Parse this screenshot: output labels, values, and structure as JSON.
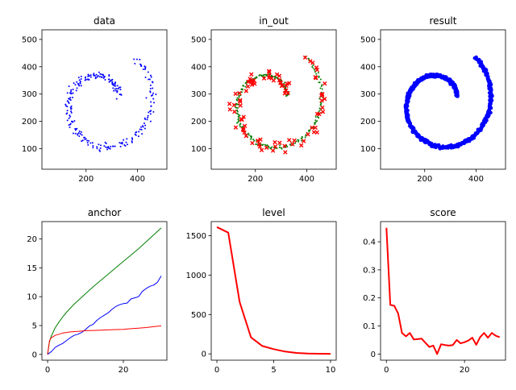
{
  "chart_data": [
    {
      "type": "scatter",
      "title": "data",
      "xlim": [
        28,
        515
      ],
      "ylim": [
        25,
        535
      ],
      "xticks": [
        200,
        400
      ],
      "yticks": [
        100,
        200,
        300,
        400,
        500
      ],
      "grid": false,
      "series": [
        {
          "color": "#0000ff",
          "marker": "dot",
          "spiral": {
            "cx": 260,
            "cy": 270,
            "r0": 70,
            "r1": 215,
            "t0": 0,
            "t1": 6.8,
            "n": 260
          },
          "noise": 14,
          "seed": 1
        }
      ]
    },
    {
      "type": "scatter",
      "title": "in_out",
      "xlim": [
        28,
        515
      ],
      "ylim": [
        25,
        535
      ],
      "xticks": [
        200,
        400
      ],
      "yticks": [
        100,
        200,
        300,
        400,
        500
      ],
      "grid": false,
      "series": [
        {
          "color": "#008000",
          "marker": "dot",
          "spiral": {
            "cx": 260,
            "cy": 270,
            "r0": 70,
            "r1": 215,
            "t0": 0,
            "t1": 6.8,
            "n": 260
          },
          "noise": 6,
          "seed": 2
        },
        {
          "color": "#ff0000",
          "marker": "x",
          "spiral": {
            "cx": 260,
            "cy": 270,
            "r0": 70,
            "r1": 215,
            "t0": 0,
            "t1": 6.8,
            "n": 90
          },
          "noise": 22,
          "seed": 3
        }
      ]
    },
    {
      "type": "scatter",
      "title": "result",
      "xlim": [
        28,
        515
      ],
      "ylim": [
        25,
        535
      ],
      "xticks": [
        200,
        400
      ],
      "yticks": [
        100,
        200,
        300,
        400,
        500
      ],
      "grid": false,
      "series": [
        {
          "color": "#0000ff",
          "marker": "dot-big",
          "spiral": {
            "cx": 260,
            "cy": 270,
            "r0": 70,
            "r1": 215,
            "t0": 0,
            "t1": 6.8,
            "n": 700
          },
          "noise": 5,
          "seed": 4
        }
      ]
    },
    {
      "type": "line",
      "title": "anchor",
      "xlim": [
        -1.5,
        31.5
      ],
      "ylim": [
        -1,
        23
      ],
      "xticks": [
        0,
        20
      ],
      "yticks": [
        0,
        5,
        10,
        15,
        20
      ],
      "grid": false,
      "series": [
        {
          "color": "#008000",
          "x": [
            0,
            0.5,
            1,
            2,
            3,
            4,
            5,
            6,
            7,
            8,
            9,
            10,
            12,
            14,
            16,
            18,
            20,
            22,
            24,
            26,
            28,
            30
          ],
          "values": [
            0,
            2.2,
            3.2,
            4.6,
            5.6,
            6.5,
            7.3,
            8.0,
            8.7,
            9.3,
            9.9,
            10.5,
            11.7,
            12.8,
            13.9,
            15.0,
            16.1,
            17.2,
            18.3,
            19.5,
            20.7,
            21.9
          ]
        },
        {
          "color": "#0000ff",
          "x": [
            0,
            1,
            2,
            3,
            4,
            5,
            6,
            7,
            8,
            9,
            10,
            11,
            12,
            13,
            14,
            15,
            16,
            17,
            18,
            19,
            20,
            21,
            22,
            23,
            24,
            25,
            26,
            27,
            28,
            29,
            30
          ],
          "values": [
            0,
            0.5,
            1.2,
            1.6,
            1.9,
            2.4,
            2.9,
            3.3,
            3.5,
            3.8,
            4.3,
            4.9,
            5.2,
            5.9,
            6.4,
            6.8,
            7.2,
            7.8,
            8.3,
            8.6,
            8.8,
            8.9,
            9.6,
            9.8,
            10.0,
            10.9,
            11.4,
            11.8,
            12.0,
            12.5,
            13.6
          ]
        },
        {
          "color": "#ff0000",
          "x": [
            0,
            0.5,
            1,
            2,
            3,
            4,
            5,
            6,
            8,
            10,
            12,
            14,
            16,
            18,
            20,
            22,
            24,
            26,
            28,
            30
          ],
          "values": [
            0,
            2.4,
            2.9,
            3.3,
            3.5,
            3.7,
            3.8,
            3.9,
            4.0,
            4.1,
            4.15,
            4.2,
            4.25,
            4.3,
            4.35,
            4.45,
            4.55,
            4.65,
            4.8,
            4.95
          ]
        }
      ]
    },
    {
      "type": "line",
      "title": "level",
      "xlim": [
        -0.5,
        10.5
      ],
      "ylim": [
        -80,
        1680
      ],
      "xticks": [
        0,
        5,
        10
      ],
      "yticks": [
        0,
        500,
        1000,
        1500
      ],
      "grid": false,
      "series": [
        {
          "color": "#ff0000",
          "x": [
            0,
            1,
            2,
            3,
            4,
            5,
            6,
            7,
            8,
            9,
            10
          ],
          "values": [
            1610,
            1540,
            660,
            210,
            100,
            60,
            30,
            12,
            5,
            2,
            1
          ]
        }
      ]
    },
    {
      "type": "line",
      "title": "score",
      "xlim": [
        -1.5,
        30.5
      ],
      "ylim": [
        -0.022,
        0.472
      ],
      "xticks": [
        0,
        20
      ],
      "yticks": [
        0.0,
        0.1,
        0.2,
        0.3,
        0.4
      ],
      "grid": false,
      "series": [
        {
          "color": "#ff0000",
          "x": [
            0,
            1,
            2,
            3,
            4,
            5,
            6,
            7,
            8,
            9,
            10,
            11,
            12,
            13,
            14,
            15,
            16,
            17,
            18,
            19,
            20,
            21,
            22,
            23,
            24,
            25,
            26,
            27,
            28,
            29
          ],
          "values": [
            0.45,
            0.175,
            0.172,
            0.145,
            0.075,
            0.063,
            0.075,
            0.052,
            0.053,
            0.055,
            0.04,
            0.025,
            0.03,
            0.0,
            0.035,
            0.032,
            0.03,
            0.032,
            0.05,
            0.038,
            0.042,
            0.048,
            0.058,
            0.033,
            0.06,
            0.075,
            0.058,
            0.075,
            0.065,
            0.06
          ]
        }
      ]
    }
  ]
}
